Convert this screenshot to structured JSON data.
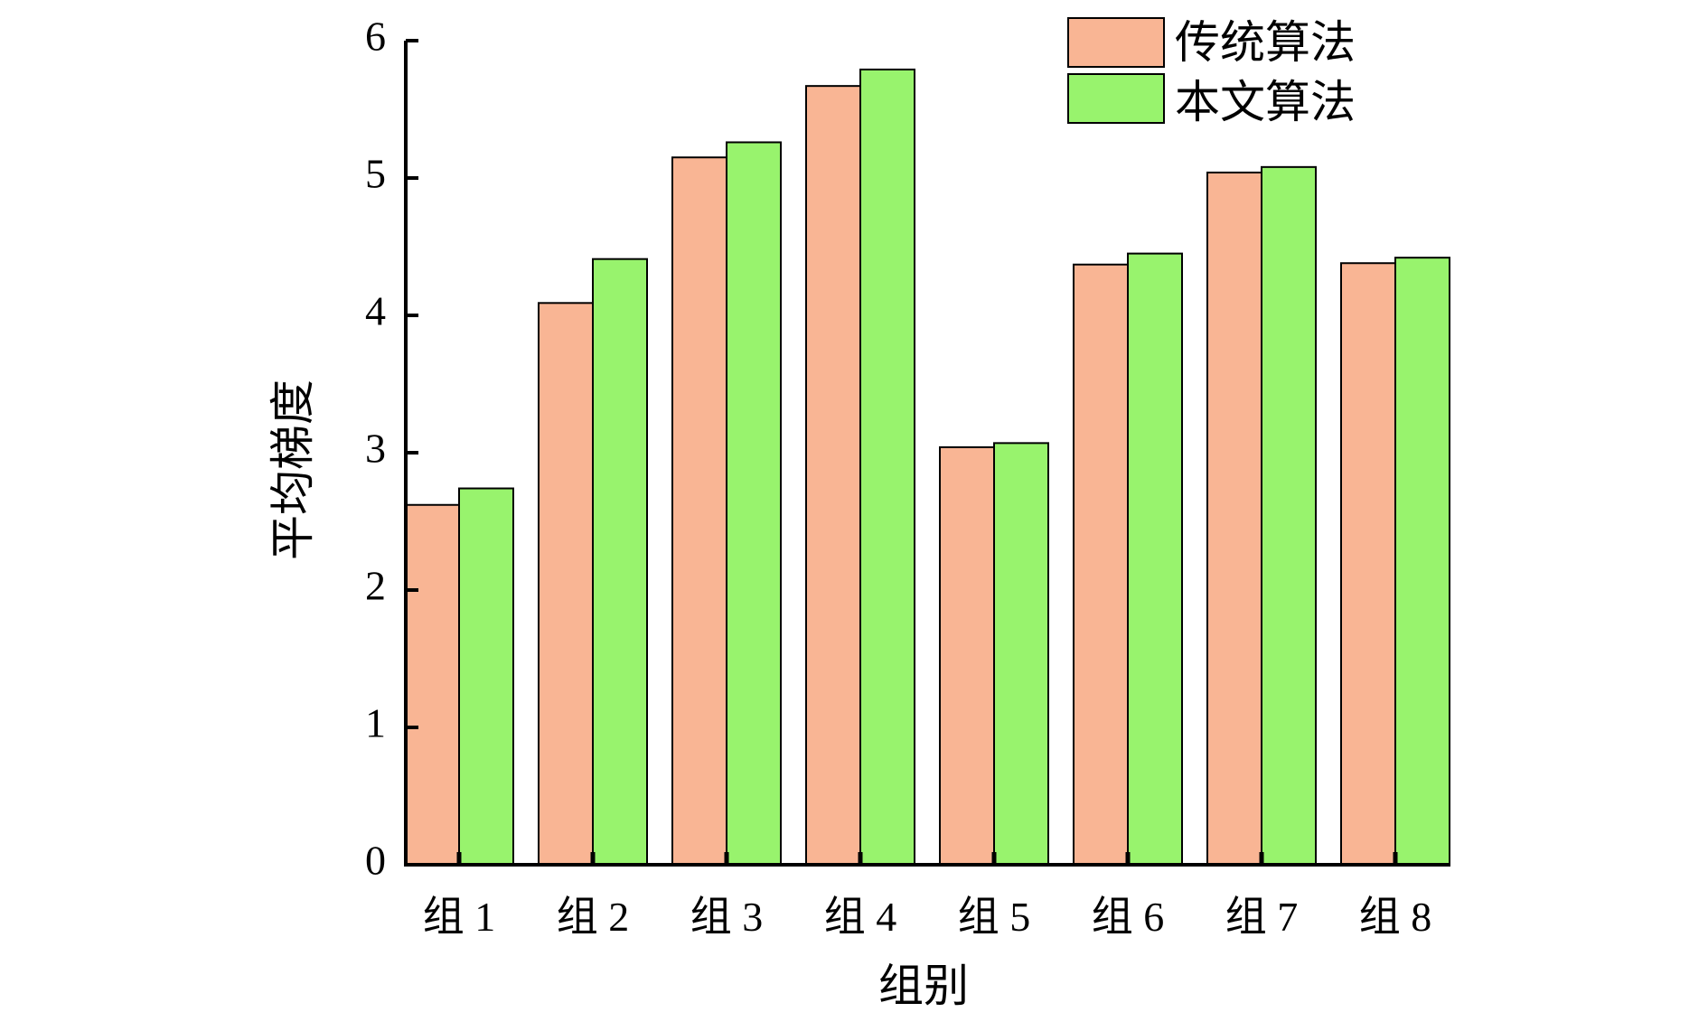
{
  "chart_data": {
    "type": "bar",
    "categories": [
      "组 1",
      "组 2",
      "组 3",
      "组 4",
      "组 5",
      "组 6",
      "组 7",
      "组 8"
    ],
    "series": [
      {
        "name": "传统算法",
        "color": "#F9B594",
        "values": [
          2.62,
          4.09,
          5.15,
          5.67,
          3.04,
          4.37,
          5.04,
          4.38
        ]
      },
      {
        "name": "本文算法",
        "color": "#98F36D",
        "values": [
          2.74,
          4.41,
          5.26,
          5.79,
          3.07,
          4.45,
          5.08,
          4.42
        ]
      }
    ],
    "xlabel": "组别",
    "ylabel": "平均梯度",
    "ylim": [
      0,
      6
    ],
    "yticks": [
      "0",
      "1",
      "2",
      "3",
      "4",
      "5",
      "6"
    ],
    "grid": false,
    "legend_position": "top-right"
  }
}
